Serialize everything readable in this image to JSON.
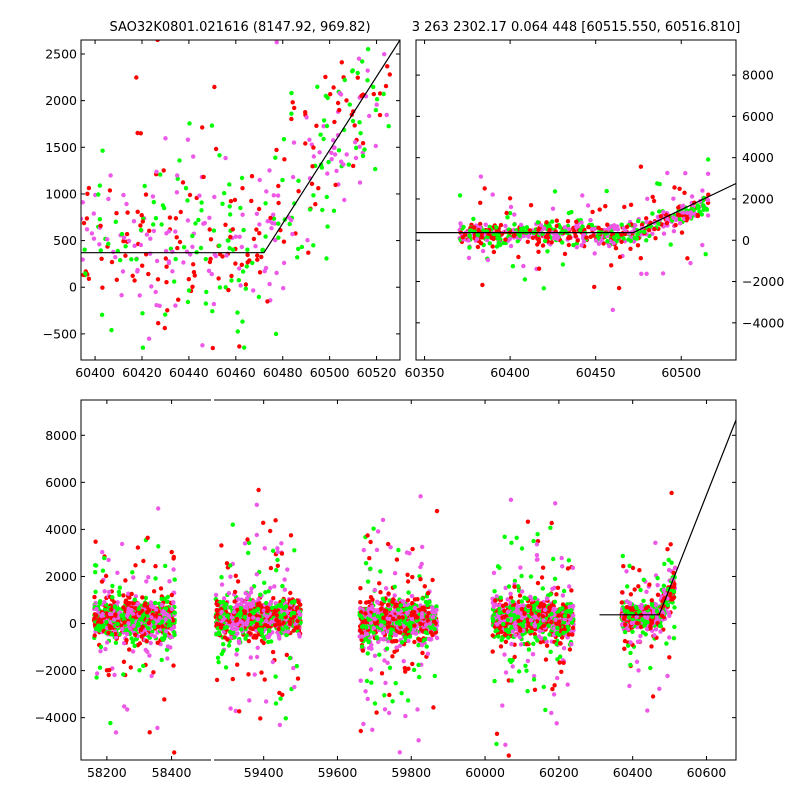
{
  "chart_data": [
    {
      "type": "scatter",
      "panel": "top-left",
      "title": "SAO32K0801.021616 (8147.92, 969.82)",
      "xlim": [
        60394,
        60530
      ],
      "ylim": [
        -780,
        2650
      ],
      "xticks": [
        60400,
        60420,
        60440,
        60460,
        60480,
        60500,
        60520
      ],
      "yticks": [
        -500,
        0,
        500,
        1000,
        1500,
        2000,
        2500
      ],
      "ytick_side": "left",
      "x_range": [
        60394,
        60526
      ],
      "y_center": 500,
      "y_spread": 900,
      "ramp_start": 60470,
      "ramp_slope": 34,
      "point_count": 520,
      "fit_line": [
        [
          60394,
          370
        ],
        [
          60472,
          370
        ],
        [
          60530,
          2650
        ]
      ]
    },
    {
      "type": "scatter",
      "panel": "top-right",
      "title": "3 263 2302.17 0.064 448 [60515.550, 60516.810]",
      "xlim": [
        60345,
        60532
      ],
      "ylim": [
        -5800,
        9700
      ],
      "xticks": [
        60350,
        60400,
        60450,
        60500
      ],
      "yticks": [
        -4000,
        -2000,
        0,
        2000,
        4000,
        6000,
        8000
      ],
      "ytick_side": "right",
      "x_range": [
        60370,
        60516
      ],
      "y_center": 300,
      "y_spread": 500,
      "ramp_start": 60470,
      "ramp_slope": 32,
      "point_count": 700,
      "fit_line": [
        [
          60345,
          370
        ],
        [
          60472,
          370
        ],
        [
          60532,
          2750
        ]
      ]
    },
    {
      "type": "scatter",
      "panel": "bottom",
      "title": "",
      "xlim": [
        58120,
        60680
      ],
      "ylim": [
        -5800,
        9500
      ],
      "xticks": [
        58200,
        58400,
        59400,
        59600,
        59800,
        60000,
        60200,
        60400,
        60600
      ],
      "yticks": [
        -4000,
        -2000,
        0,
        2000,
        4000,
        6000,
        8000
      ],
      "ytick_side": "left",
      "axis_break": 58525,
      "segments": [
        [
          [
            58120,
            58525
          ],
          [
            58120,
            58525
          ]
        ],
        [
          [
            58525,
            60680
          ],
          [
            59260,
            60680
          ]
        ]
      ],
      "clusters": [
        {
          "x_range": [
            58160,
            58410
          ],
          "y_center": 200,
          "y_spread": 700,
          "count": 900
        },
        {
          "x_range": [
            59270,
            59500
          ],
          "y_center": 200,
          "y_spread": 700,
          "count": 900
        },
        {
          "x_range": [
            59660,
            59870
          ],
          "y_center": 100,
          "y_spread": 800,
          "count": 900
        },
        {
          "x_range": [
            60020,
            60240
          ],
          "y_center": 200,
          "y_spread": 700,
          "count": 900
        },
        {
          "x_range": [
            60370,
            60515
          ],
          "y_center": 300,
          "y_spread": 500,
          "count": 600,
          "ramp_start": 60470,
          "ramp_slope": 32
        }
      ],
      "fit_line": [
        [
          60310,
          370
        ],
        [
          60472,
          370
        ],
        [
          60680,
          8650
        ]
      ]
    }
  ],
  "series_colors": {
    "red": "#ff0000",
    "green": "#00ff00",
    "violet": "#ee58e6"
  }
}
